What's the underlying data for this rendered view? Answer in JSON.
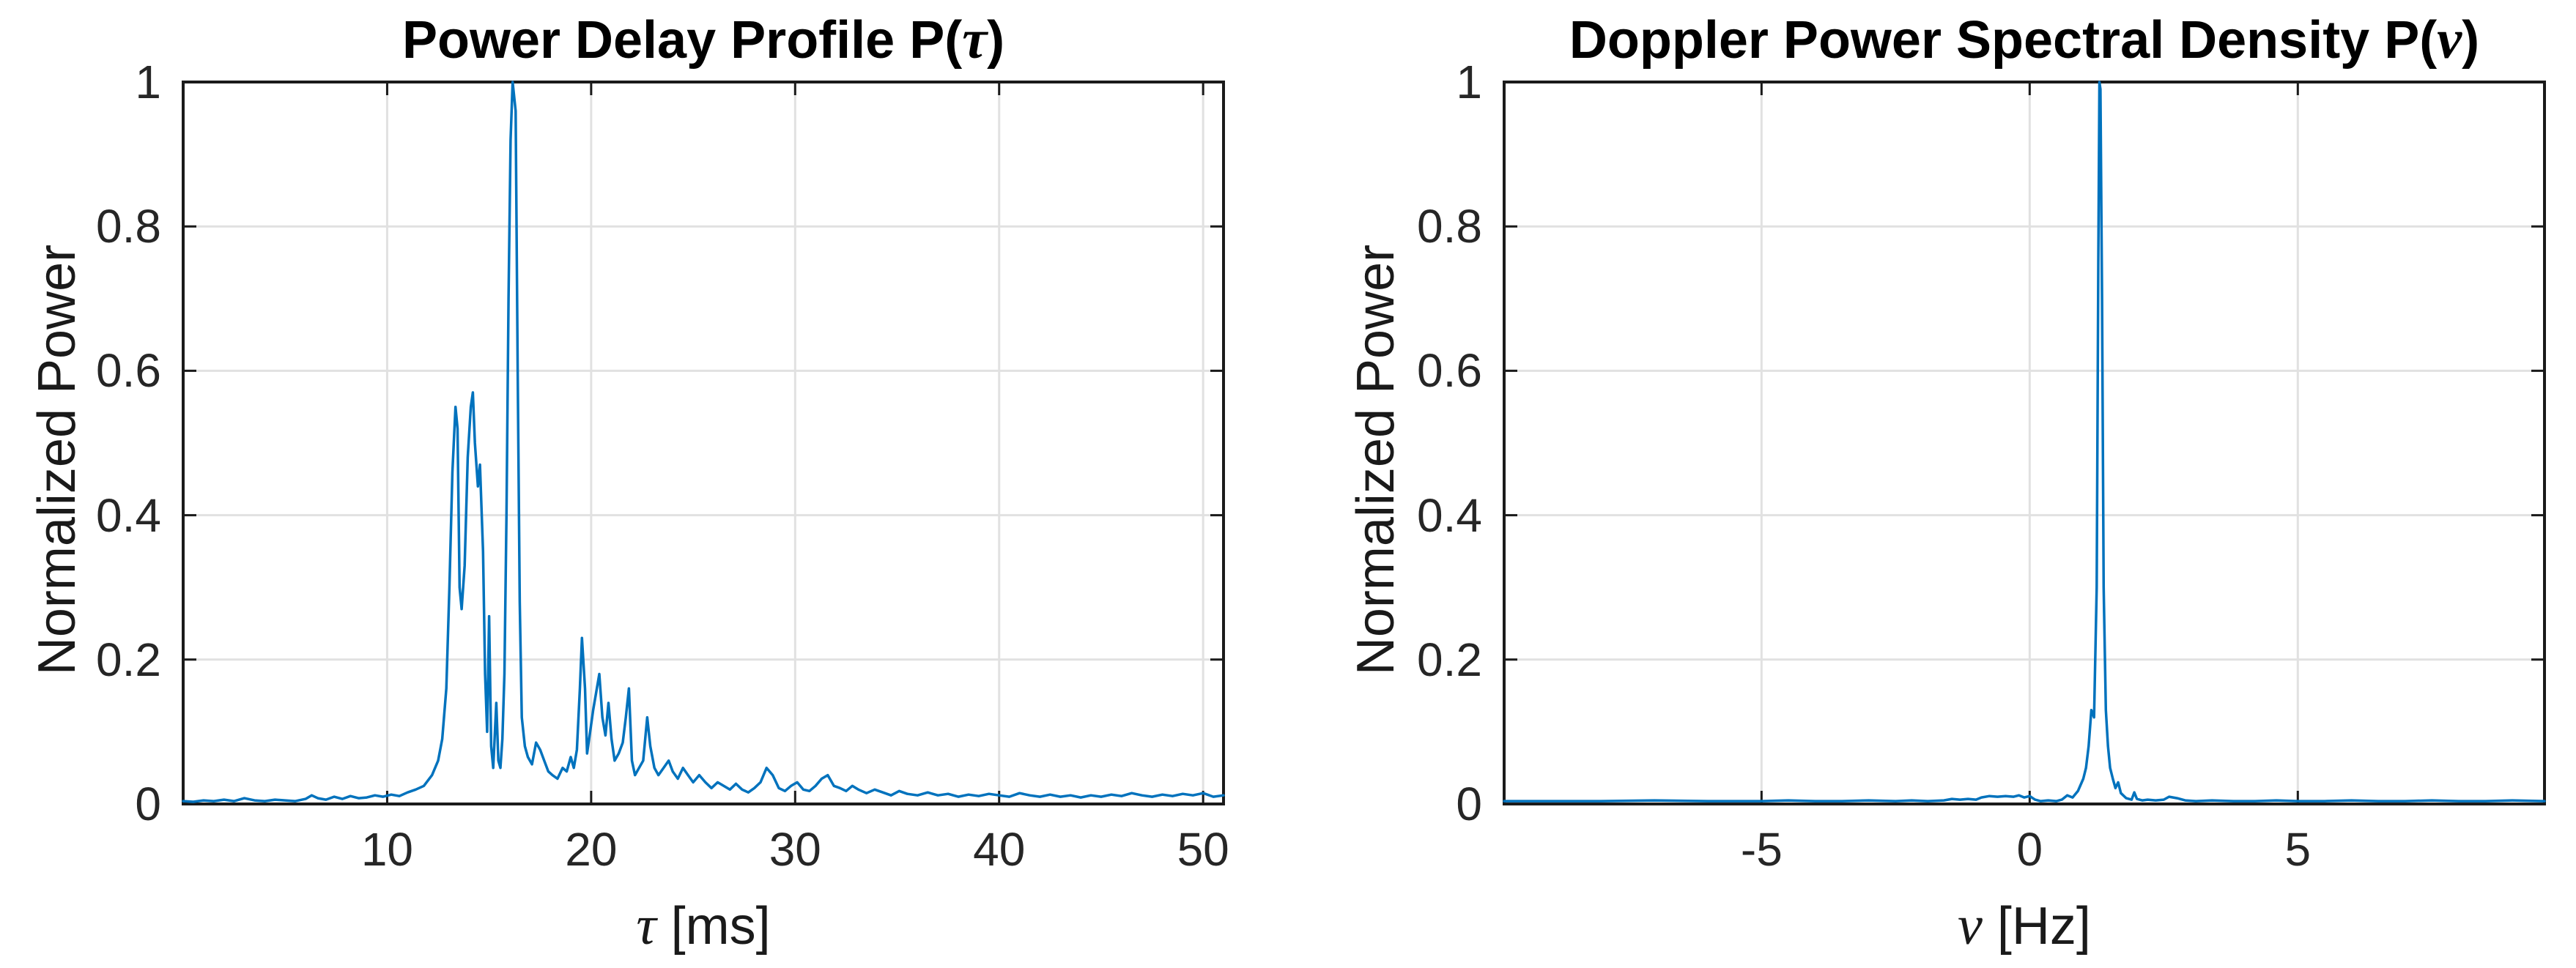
{
  "figure": {
    "background": "#ffffff",
    "colors": {
      "line": "#0072BD",
      "axis_box": "#1a1a1a",
      "grid": "#e1e1e1",
      "tick_text": "#262626",
      "title_text": "#000000"
    }
  },
  "chart_data": [
    {
      "type": "line",
      "title": {
        "prefix": "Power Delay Profile P(",
        "symbol": "τ",
        "suffix": ")"
      },
      "title_text": "Power Delay Profile P(τ)",
      "xlabel_symbol": "τ",
      "xlabel_unit": " [ms]",
      "xlabel_text": "τ [ms]",
      "ylabel": "Normalized Power",
      "xlim": [
        0,
        51
      ],
      "ylim": [
        0,
        1
      ],
      "grid": true,
      "legend": null,
      "xtick_values": [
        10,
        20,
        30,
        40,
        50
      ],
      "xtick_labels": [
        "10",
        "20",
        "30",
        "40",
        "50"
      ],
      "ytick_values": [
        0,
        0.2,
        0.4,
        0.6,
        0.8,
        1
      ],
      "ytick_labels": [
        "0",
        "0.2",
        "0.4",
        "0.6",
        "0.8",
        "1"
      ],
      "line_color": "#0072BD",
      "series": [
        {
          "name": "P(tau)",
          "x": [
            0,
            0.5,
            1,
            1.5,
            2,
            2.5,
            3,
            3.5,
            4,
            4.5,
            5,
            5.5,
            6,
            6.3,
            6.6,
            7,
            7.4,
            7.8,
            8.2,
            8.6,
            9,
            9.4,
            9.8,
            10.2,
            10.6,
            11,
            11.4,
            11.8,
            12.2,
            12.5,
            12.7,
            12.9,
            13.05,
            13.2,
            13.35,
            13.45,
            13.55,
            13.65,
            13.8,
            13.95,
            14.1,
            14.2,
            14.3,
            14.45,
            14.55,
            14.7,
            14.8,
            14.9,
            15.0,
            15.1,
            15.2,
            15.35,
            15.45,
            15.55,
            15.65,
            15.75,
            15.85,
            15.95,
            16.05,
            16.15,
            16.3,
            16.4,
            16.5,
            16.6,
            16.75,
            16.9,
            17.1,
            17.3,
            17.5,
            17.7,
            17.9,
            18.1,
            18.35,
            18.6,
            18.8,
            19.0,
            19.15,
            19.3,
            19.45,
            19.55,
            19.7,
            19.8,
            19.95,
            20.1,
            20.25,
            20.4,
            20.55,
            20.7,
            20.85,
            21.0,
            21.15,
            21.35,
            21.55,
            21.7,
            21.85,
            22.0,
            22.15,
            22.35,
            22.55,
            22.75,
            22.9,
            23.1,
            23.3,
            23.55,
            23.8,
            24.0,
            24.25,
            24.5,
            24.75,
            25.0,
            25.3,
            25.6,
            25.9,
            26.2,
            26.5,
            26.8,
            27.1,
            27.4,
            27.7,
            28.0,
            28.3,
            28.6,
            28.9,
            29.2,
            29.5,
            29.8,
            30.1,
            30.4,
            30.7,
            31.0,
            31.3,
            31.6,
            31.9,
            32.2,
            32.5,
            32.8,
            33.1,
            33.5,
            33.9,
            34.3,
            34.7,
            35.1,
            35.5,
            36,
            36.5,
            37,
            37.5,
            38,
            38.5,
            39,
            39.5,
            40,
            40.5,
            41,
            41.5,
            42,
            42.5,
            43,
            43.5,
            44,
            44.5,
            45,
            45.5,
            46,
            46.5,
            47,
            47.5,
            48,
            48.5,
            49,
            49.5,
            50,
            50.5,
            51
          ],
          "y": [
            0.004,
            0.003,
            0.005,
            0.004,
            0.006,
            0.004,
            0.008,
            0.005,
            0.004,
            0.006,
            0.005,
            0.004,
            0.007,
            0.012,
            0.008,
            0.006,
            0.01,
            0.007,
            0.011,
            0.008,
            0.009,
            0.012,
            0.01,
            0.013,
            0.011,
            0.016,
            0.02,
            0.025,
            0.04,
            0.06,
            0.09,
            0.16,
            0.3,
            0.46,
            0.55,
            0.52,
            0.3,
            0.27,
            0.33,
            0.48,
            0.55,
            0.57,
            0.5,
            0.44,
            0.47,
            0.35,
            0.18,
            0.1,
            0.26,
            0.08,
            0.05,
            0.14,
            0.06,
            0.05,
            0.09,
            0.18,
            0.4,
            0.7,
            0.92,
            1.0,
            0.96,
            0.6,
            0.28,
            0.12,
            0.08,
            0.065,
            0.055,
            0.085,
            0.075,
            0.06,
            0.045,
            0.04,
            0.035,
            0.05,
            0.045,
            0.065,
            0.05,
            0.075,
            0.16,
            0.23,
            0.16,
            0.07,
            0.1,
            0.13,
            0.155,
            0.18,
            0.12,
            0.095,
            0.14,
            0.09,
            0.06,
            0.07,
            0.085,
            0.12,
            0.16,
            0.06,
            0.04,
            0.05,
            0.06,
            0.12,
            0.08,
            0.05,
            0.04,
            0.05,
            0.06,
            0.045,
            0.035,
            0.05,
            0.04,
            0.03,
            0.04,
            0.03,
            0.022,
            0.03,
            0.025,
            0.02,
            0.028,
            0.02,
            0.016,
            0.022,
            0.03,
            0.05,
            0.04,
            0.022,
            0.018,
            0.025,
            0.03,
            0.02,
            0.018,
            0.025,
            0.035,
            0.04,
            0.025,
            0.022,
            0.018,
            0.025,
            0.02,
            0.015,
            0.02,
            0.016,
            0.012,
            0.018,
            0.014,
            0.012,
            0.016,
            0.012,
            0.014,
            0.01,
            0.013,
            0.011,
            0.014,
            0.012,
            0.01,
            0.015,
            0.012,
            0.01,
            0.013,
            0.01,
            0.012,
            0.009,
            0.012,
            0.01,
            0.013,
            0.011,
            0.015,
            0.012,
            0.01,
            0.013,
            0.011,
            0.014,
            0.012,
            0.015,
            0.01,
            0.012
          ]
        }
      ]
    },
    {
      "type": "line",
      "title": {
        "prefix": "Doppler Power Spectral Density P(",
        "symbol": "ν",
        "suffix": ")"
      },
      "title_text": "Doppler Power Spectral Density P(ν)",
      "xlabel_symbol": "ν",
      "xlabel_unit": " [Hz]",
      "xlabel_text": "ν [Hz]",
      "ylabel": "Normalized Power",
      "xlim": [
        -9.8,
        9.6
      ],
      "ylim": [
        0,
        1
      ],
      "grid": true,
      "legend": null,
      "xtick_values": [
        -5,
        0,
        5
      ],
      "xtick_labels": [
        "-5",
        "0",
        "5"
      ],
      "ytick_values": [
        0,
        0.2,
        0.4,
        0.6,
        0.8,
        1
      ],
      "ytick_labels": [
        "0",
        "0.2",
        "0.4",
        "0.6",
        "0.8",
        "1"
      ],
      "line_color": "#0072BD",
      "series": [
        {
          "name": "P(nu)",
          "x": [
            -9.8,
            -9,
            -8,
            -7,
            -6,
            -5,
            -4.5,
            -4,
            -3.5,
            -3,
            -2.5,
            -2.2,
            -1.9,
            -1.6,
            -1.45,
            -1.3,
            -1.15,
            -1.0,
            -0.9,
            -0.75,
            -0.6,
            -0.45,
            -0.3,
            -0.2,
            -0.1,
            0.0,
            0.1,
            0.2,
            0.35,
            0.5,
            0.6,
            0.7,
            0.8,
            0.9,
            1.0,
            1.05,
            1.1,
            1.15,
            1.2,
            1.25,
            1.28,
            1.3,
            1.32,
            1.35,
            1.38,
            1.42,
            1.46,
            1.5,
            1.55,
            1.6,
            1.65,
            1.7,
            1.8,
            1.9,
            1.95,
            2.0,
            2.1,
            2.2,
            2.35,
            2.5,
            2.6,
            2.75,
            2.9,
            3.1,
            3.4,
            3.8,
            4.2,
            4.6,
            5.0,
            5.5,
            6.0,
            6.5,
            7.0,
            7.5,
            8.0,
            8.5,
            9.0,
            9.6
          ],
          "y": [
            0.004,
            0.004,
            0.004,
            0.005,
            0.004,
            0.004,
            0.005,
            0.004,
            0.004,
            0.005,
            0.004,
            0.005,
            0.004,
            0.005,
            0.007,
            0.006,
            0.007,
            0.006,
            0.009,
            0.011,
            0.01,
            0.011,
            0.01,
            0.012,
            0.009,
            0.011,
            0.006,
            0.004,
            0.005,
            0.004,
            0.006,
            0.012,
            0.009,
            0.018,
            0.035,
            0.05,
            0.08,
            0.13,
            0.12,
            0.3,
            0.75,
            1.0,
            0.99,
            0.7,
            0.3,
            0.13,
            0.08,
            0.05,
            0.035,
            0.022,
            0.03,
            0.015,
            0.008,
            0.006,
            0.016,
            0.007,
            0.005,
            0.006,
            0.005,
            0.006,
            0.01,
            0.008,
            0.005,
            0.004,
            0.005,
            0.004,
            0.004,
            0.005,
            0.004,
            0.004,
            0.005,
            0.004,
            0.004,
            0.005,
            0.004,
            0.004,
            0.005,
            0.004
          ]
        }
      ]
    }
  ]
}
